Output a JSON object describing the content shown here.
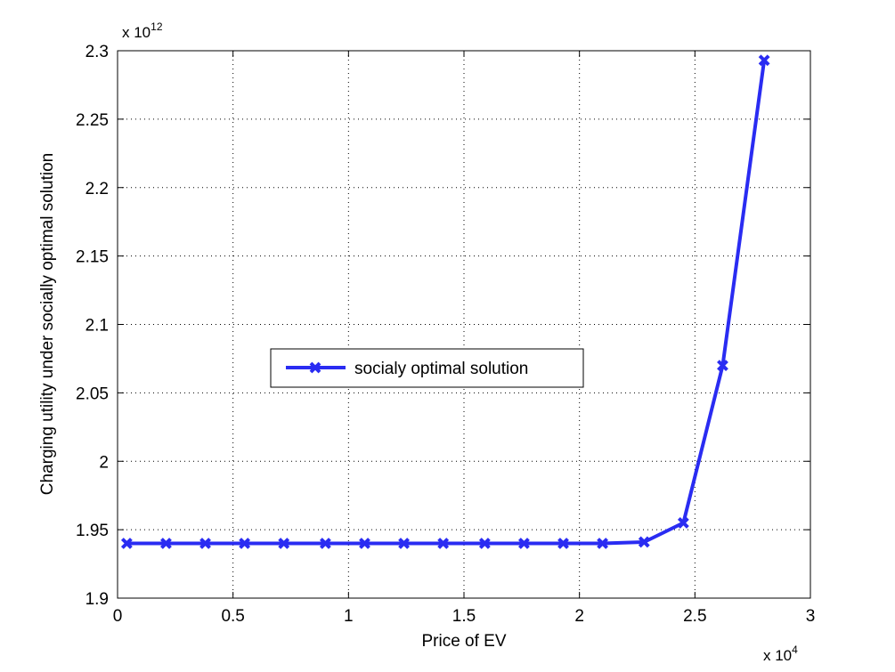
{
  "chart_data": {
    "type": "line",
    "xlabel": "Price of EV",
    "ylabel": "Charging utility under socially optimal solution",
    "xlim": [
      0,
      3
    ],
    "ylim": [
      1.9,
      2.3
    ],
    "x_ticks": [
      0,
      0.5,
      1,
      1.5,
      2,
      2.5,
      3
    ],
    "x_tick_labels": [
      "0",
      "0.5",
      "1",
      "1.5",
      "2",
      "2.5",
      "3"
    ],
    "y_ticks": [
      1.9,
      1.95,
      2.0,
      2.05,
      2.1,
      2.15,
      2.2,
      2.25,
      2.3
    ],
    "y_tick_labels": [
      "1.9",
      "1.95",
      "2",
      "2.05",
      "2.1",
      "2.15",
      "2.2",
      "2.25",
      "2.3"
    ],
    "x_multiplier": {
      "base": "x 10",
      "exp": "4"
    },
    "y_multiplier": {
      "base": "x 10",
      "exp": "12"
    },
    "grid": true,
    "legend_position": "center-left",
    "series": [
      {
        "name": "socialy optimal solution",
        "color": "#2a2cf2",
        "marker": "x",
        "x": [
          0.04,
          0.21,
          0.38,
          0.55,
          0.72,
          0.9,
          1.07,
          1.24,
          1.41,
          1.59,
          1.76,
          1.93,
          2.1,
          2.28,
          2.45,
          2.62,
          2.8
        ],
        "y": [
          1.94,
          1.94,
          1.94,
          1.94,
          1.94,
          1.94,
          1.94,
          1.94,
          1.94,
          1.94,
          1.94,
          1.94,
          1.94,
          1.941,
          1.955,
          2.07,
          2.293
        ]
      }
    ]
  }
}
